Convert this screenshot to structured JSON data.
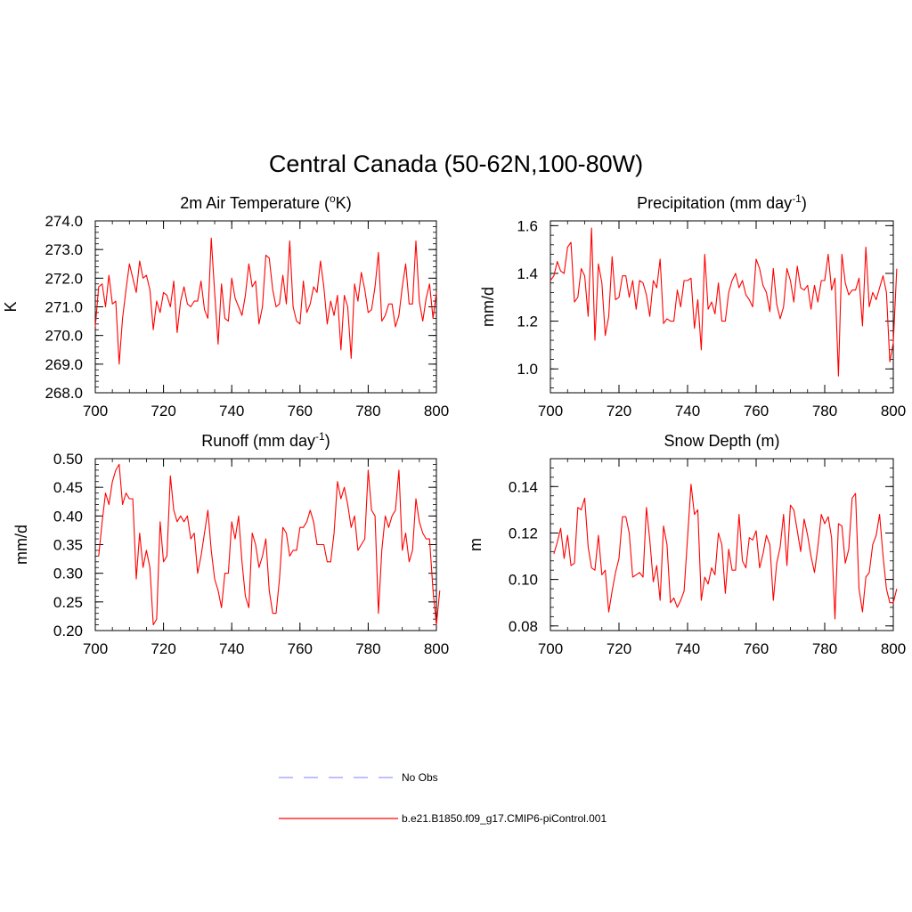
{
  "title": "Central Canada (50-62N,100-80W)",
  "colors": {
    "model_line": "#ff0000",
    "obs_line": "#9999ff",
    "axis": "#000000"
  },
  "legend": [
    {
      "label": "No Obs",
      "style": "dashed",
      "color": "#9999ff"
    },
    {
      "label": "b.e21.B1850.f09_g17.CMIP6-piControl.001",
      "style": "solid",
      "color": "#ff0000"
    }
  ],
  "chart_data": [
    {
      "id": "temp",
      "type": "line",
      "title_main": "2m Air Temperature (",
      "title_sup": "o",
      "title_tail": "K)",
      "ylabel": "K",
      "xlim": [
        700,
        800
      ],
      "ylim": [
        268.0,
        274.0
      ],
      "xticks": [
        "700",
        "720",
        "740",
        "760",
        "780",
        "800"
      ],
      "xtick_values": [
        700,
        720,
        740,
        760,
        780,
        800
      ],
      "yticks": [
        "268.0",
        "269.0",
        "270.0",
        "271.0",
        "272.0",
        "273.0",
        "274.0"
      ],
      "ytick_values": [
        268,
        269,
        270,
        271,
        272,
        273,
        274
      ],
      "yminor_step": 0.2,
      "x_start": 700,
      "series": [
        {
          "name": "b.e21.B1850.f09_g17.CMIP6-piControl.001",
          "values": [
            270.3,
            271.7,
            271.8,
            271.0,
            272.1,
            271.1,
            271.2,
            269.0,
            270.6,
            271.6,
            272.5,
            272.0,
            271.5,
            272.6,
            272.0,
            272.1,
            271.6,
            270.2,
            271.2,
            270.8,
            271.5,
            271.4,
            271.0,
            271.9,
            270.1,
            271.2,
            271.7,
            271.1,
            271.0,
            271.2,
            271.2,
            271.9,
            270.9,
            270.6,
            273.4,
            271.5,
            269.7,
            271.8,
            270.6,
            270.5,
            272.0,
            271.3,
            271.0,
            270.7,
            271.4,
            272.5,
            271.7,
            271.9,
            270.4,
            271.0,
            272.8,
            272.7,
            271.6,
            271.0,
            271.1,
            272.1,
            271.1,
            273.3,
            271.0,
            270.5,
            270.4,
            271.9,
            270.8,
            271.1,
            271.7,
            271.5,
            272.6,
            271.7,
            270.4,
            271.2,
            270.7,
            271.4,
            269.5,
            271.4,
            271.0,
            269.2,
            271.8,
            271.2,
            272.2,
            271.6,
            270.8,
            270.9,
            271.7,
            272.9,
            270.5,
            270.7,
            271.1,
            271.1,
            270.3,
            270.7,
            271.7,
            272.5,
            271.1,
            271.1,
            273.3,
            271.2,
            270.5,
            271.3,
            271.8,
            270.6,
            271.5
          ]
        }
      ]
    },
    {
      "id": "precip",
      "type": "line",
      "title_main": "Precipitation (mm day",
      "title_sup": "-1",
      "title_tail": ")",
      "ylabel": "mm/d",
      "xlim": [
        700,
        800
      ],
      "ylim": [
        0.9,
        1.62
      ],
      "xticks": [
        "700",
        "720",
        "740",
        "760",
        "780",
        "800"
      ],
      "xtick_values": [
        700,
        720,
        740,
        760,
        780,
        800
      ],
      "yticks": [
        "1.0",
        "1.2",
        "1.4",
        "1.6"
      ],
      "ytick_values": [
        1.0,
        1.2,
        1.4,
        1.6
      ],
      "yminor_step": 0.04,
      "x_start": 700,
      "series": [
        {
          "name": "b.e21.B1850.f09_g17.CMIP6-piControl.001",
          "values": [
            1.37,
            1.39,
            1.45,
            1.41,
            1.4,
            1.51,
            1.53,
            1.28,
            1.3,
            1.42,
            1.39,
            1.22,
            1.59,
            1.12,
            1.44,
            1.36,
            1.14,
            1.22,
            1.47,
            1.29,
            1.3,
            1.39,
            1.39,
            1.3,
            1.37,
            1.25,
            1.37,
            1.36,
            1.31,
            1.22,
            1.37,
            1.34,
            1.46,
            1.19,
            1.21,
            1.2,
            1.2,
            1.33,
            1.26,
            1.37,
            1.37,
            1.38,
            1.17,
            1.29,
            1.08,
            1.48,
            1.25,
            1.28,
            1.23,
            1.36,
            1.2,
            1.2,
            1.32,
            1.37,
            1.4,
            1.34,
            1.37,
            1.31,
            1.29,
            1.26,
            1.46,
            1.42,
            1.35,
            1.32,
            1.24,
            1.42,
            1.27,
            1.21,
            1.26,
            1.42,
            1.37,
            1.28,
            1.43,
            1.34,
            1.33,
            1.35,
            1.25,
            1.35,
            1.28,
            1.37,
            1.37,
            1.48,
            1.33,
            1.38,
            0.97,
            1.48,
            1.36,
            1.31,
            1.33,
            1.33,
            1.38,
            1.18,
            1.51,
            1.26,
            1.32,
            1.29,
            1.34,
            1.39,
            1.32,
            1.03,
            1.11,
            1.42
          ]
        }
      ]
    },
    {
      "id": "runoff",
      "type": "line",
      "title_main": "Runoff (mm day",
      "title_sup": "-1",
      "title_tail": ")",
      "ylabel": "mm/d",
      "xlim": [
        700,
        800
      ],
      "ylim": [
        0.2,
        0.5
      ],
      "xticks": [
        "700",
        "720",
        "740",
        "760",
        "780",
        "800"
      ],
      "xtick_values": [
        700,
        720,
        740,
        760,
        780,
        800
      ],
      "yticks": [
        "0.20",
        "0.25",
        "0.30",
        "0.35",
        "0.40",
        "0.45",
        "0.50"
      ],
      "ytick_values": [
        0.2,
        0.25,
        0.3,
        0.35,
        0.4,
        0.45,
        0.5
      ],
      "yminor_step": 0.01,
      "x_start": 701,
      "series": [
        {
          "name": "b.e21.B1850.f09_g17.CMIP6-piControl.001",
          "values": [
            0.33,
            0.39,
            0.44,
            0.42,
            0.46,
            0.48,
            0.49,
            0.42,
            0.44,
            0.43,
            0.43,
            0.29,
            0.37,
            0.31,
            0.34,
            0.31,
            0.21,
            0.22,
            0.39,
            0.32,
            0.33,
            0.47,
            0.41,
            0.39,
            0.4,
            0.39,
            0.4,
            0.36,
            0.37,
            0.3,
            0.33,
            0.37,
            0.41,
            0.34,
            0.29,
            0.27,
            0.24,
            0.3,
            0.3,
            0.39,
            0.36,
            0.4,
            0.32,
            0.26,
            0.24,
            0.37,
            0.35,
            0.31,
            0.33,
            0.36,
            0.27,
            0.23,
            0.23,
            0.29,
            0.38,
            0.37,
            0.33,
            0.34,
            0.34,
            0.38,
            0.38,
            0.39,
            0.41,
            0.39,
            0.35,
            0.35,
            0.35,
            0.32,
            0.32,
            0.37,
            0.46,
            0.43,
            0.45,
            0.42,
            0.38,
            0.4,
            0.34,
            0.35,
            0.36,
            0.48,
            0.41,
            0.4,
            0.23,
            0.34,
            0.4,
            0.38,
            0.4,
            0.41,
            0.48,
            0.34,
            0.37,
            0.32,
            0.34,
            0.43,
            0.39,
            0.37,
            0.36,
            0.36,
            0.27,
            0.21,
            0.27
          ]
        }
      ]
    },
    {
      "id": "snow",
      "type": "line",
      "title_main": "Snow Depth (m)",
      "title_sup": "",
      "title_tail": "",
      "ylabel": "m",
      "xlim": [
        700,
        800
      ],
      "ylim": [
        0.078,
        0.152
      ],
      "xticks": [
        "700",
        "720",
        "740",
        "760",
        "780",
        "800"
      ],
      "xtick_values": [
        700,
        720,
        740,
        760,
        780,
        800
      ],
      "yticks": [
        "0.08",
        "0.10",
        "0.12",
        "0.14"
      ],
      "ytick_values": [
        0.08,
        0.1,
        0.12,
        0.14
      ],
      "yminor_step": 0.004,
      "x_start": 701,
      "series": [
        {
          "name": "b.e21.B1850.f09_g17.CMIP6-piControl.001",
          "values": [
            0.111,
            0.116,
            0.122,
            0.109,
            0.119,
            0.106,
            0.107,
            0.131,
            0.13,
            0.135,
            0.114,
            0.105,
            0.104,
            0.119,
            0.102,
            0.104,
            0.086,
            0.095,
            0.103,
            0.109,
            0.127,
            0.127,
            0.12,
            0.101,
            0.102,
            0.103,
            0.101,
            0.131,
            0.117,
            0.099,
            0.106,
            0.091,
            0.123,
            0.115,
            0.09,
            0.092,
            0.088,
            0.091,
            0.095,
            0.118,
            0.141,
            0.128,
            0.13,
            0.091,
            0.101,
            0.098,
            0.105,
            0.102,
            0.12,
            0.115,
            0.094,
            0.113,
            0.104,
            0.104,
            0.128,
            0.108,
            0.105,
            0.118,
            0.117,
            0.121,
            0.105,
            0.111,
            0.119,
            0.115,
            0.091,
            0.107,
            0.114,
            0.128,
            0.106,
            0.132,
            0.13,
            0.121,
            0.112,
            0.126,
            0.119,
            0.11,
            0.103,
            0.114,
            0.128,
            0.124,
            0.127,
            0.118,
            0.083,
            0.124,
            0.123,
            0.107,
            0.113,
            0.135,
            0.137,
            0.096,
            0.086,
            0.101,
            0.103,
            0.115,
            0.119,
            0.128,
            0.11,
            0.096,
            0.09,
            0.09,
            0.096
          ]
        }
      ]
    }
  ]
}
